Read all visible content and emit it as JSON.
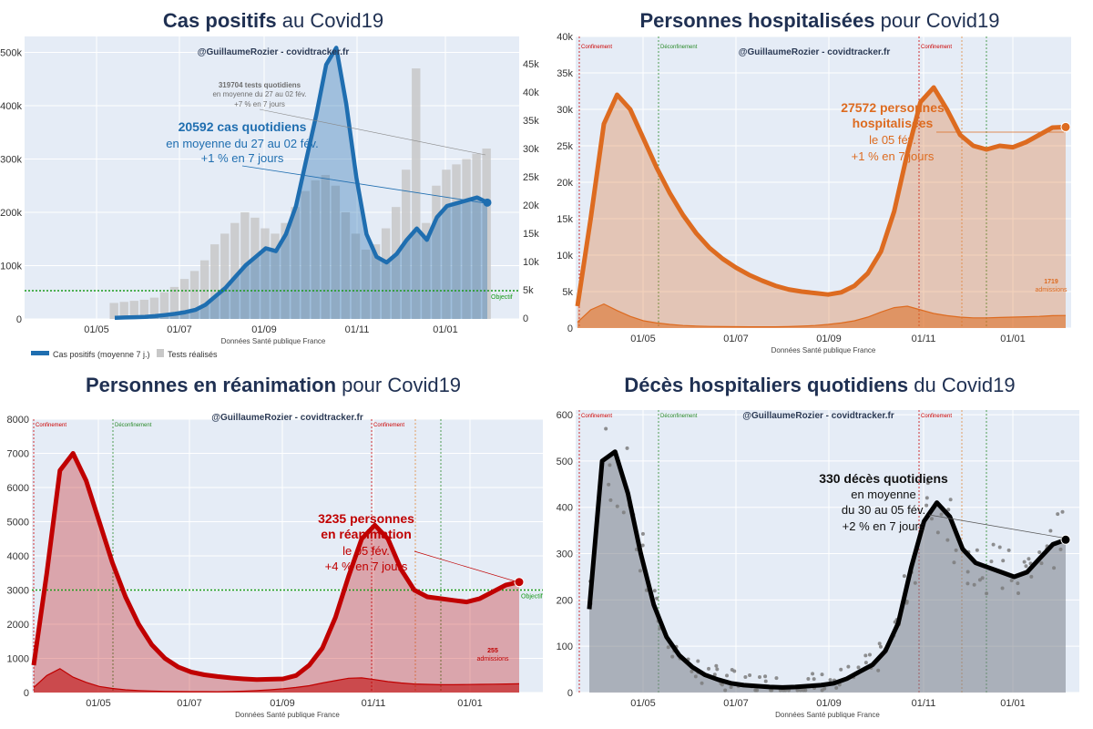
{
  "chart_data": [
    {
      "type": "area",
      "title_bold": "Cas positifs",
      "title_rest": "au Covid19",
      "credit": "@GuillaumeRozier - covidtracker.fr",
      "source": "Données Santé publique France",
      "xticks": [
        "01/05",
        "01/07",
        "01/09",
        "01/11",
        "01/01"
      ],
      "y_left_ticks": [
        "0",
        "100k",
        "200k",
        "300k",
        "400k",
        "500k"
      ],
      "y_left_range": [
        0,
        530000
      ],
      "y_right_ticks": [
        "0",
        "5k",
        "10k",
        "15k",
        "20k",
        "25k",
        "30k",
        "35k",
        "40k",
        "45k"
      ],
      "y_right_range": [
        0,
        50000
      ],
      "legend": [
        "Cas positifs (moyenne 7 j.)",
        "Tests réalisés"
      ],
      "objective": {
        "label": "Objectif",
        "value": 5000
      },
      "series": [
        {
          "name": "Cas positifs (moyenne 7 j.)",
          "axis": "right",
          "color": "#1f6eb0",
          "x": [
            0,
            1,
            2,
            3,
            4,
            5,
            6,
            7,
            8,
            9,
            10,
            11,
            12,
            13,
            14,
            15,
            16,
            17,
            18,
            19,
            20,
            21,
            22,
            23,
            24,
            25,
            26,
            27,
            28,
            29,
            30,
            31,
            32,
            33,
            34,
            35,
            36,
            37
          ],
          "values": [
            200,
            250,
            300,
            350,
            500,
            700,
            900,
            1200,
            1600,
            2500,
            4000,
            5500,
            7500,
            9500,
            11000,
            12500,
            12000,
            15000,
            20000,
            28000,
            36000,
            45000,
            48000,
            38000,
            25000,
            15000,
            11000,
            10000,
            11500,
            14000,
            16000,
            14000,
            18000,
            20000,
            20500,
            21000,
            21500,
            20592
          ]
        },
        {
          "name": "Tests réalisés",
          "axis": "left",
          "color": "#c8c8c8",
          "x": [
            0,
            1,
            2,
            3,
            4,
            5,
            6,
            7,
            8,
            9,
            10,
            11,
            12,
            13,
            14,
            15,
            16,
            17,
            18,
            19,
            20,
            21,
            22,
            23,
            24,
            25,
            26,
            27,
            28,
            29,
            30,
            31,
            32,
            33,
            34,
            35,
            36,
            37
          ],
          "values": [
            30000,
            32000,
            34000,
            36000,
            40000,
            50000,
            60000,
            75000,
            90000,
            110000,
            140000,
            160000,
            180000,
            200000,
            190000,
            170000,
            160000,
            180000,
            210000,
            240000,
            260000,
            270000,
            250000,
            200000,
            160000,
            130000,
            140000,
            170000,
            210000,
            280000,
            470000,
            180000,
            250000,
            280000,
            290000,
            300000,
            310000,
            319704
          ]
        }
      ],
      "annotations": [
        {
          "text": "319704 tests quotidiens",
          "bold": true,
          "color": "#6e6e6e"
        },
        {
          "text": "en moyenne du 27 au 02 fév.",
          "bold": false,
          "color": "#6e6e6e"
        },
        {
          "text": "+7 % en 7 jours",
          "bold": false,
          "color": "#6e6e6e"
        },
        {
          "text": "20592 cas quotidiens",
          "bold": true,
          "color": "#1f6eb0"
        },
        {
          "text": "en moyenne du 27 au 02 fév.",
          "bold": false,
          "color": "#1f6eb0"
        },
        {
          "text": "+1 % en 7 jours",
          "bold": false,
          "color": "#1f6eb0"
        }
      ]
    },
    {
      "type": "area",
      "title_bold": "Personnes hospitalisées",
      "title_rest": "pour Covid19",
      "credit": "@GuillaumeRozier - covidtracker.fr",
      "source": "Données Santé publique France",
      "xticks": [
        "01/05",
        "01/07",
        "01/09",
        "01/11",
        "01/01"
      ],
      "y_left_ticks": [
        "0",
        "5k",
        "10k",
        "15k",
        "20k",
        "25k",
        "30k",
        "35k",
        "40k"
      ],
      "y_left_range": [
        0,
        40000
      ],
      "events": [
        {
          "label": "Confinement",
          "color": "#cc0000"
        },
        {
          "label": "Déconfinement",
          "color": "#2a8a2a"
        },
        {
          "label": "Confinement",
          "color": "#cc0000"
        }
      ],
      "series": [
        {
          "name": "Personnes hospitalisées",
          "color": "#dd6b20",
          "x": [
            0,
            1,
            2,
            3,
            4,
            5,
            6,
            7,
            8,
            9,
            10,
            11,
            12,
            13,
            14,
            15,
            16,
            17,
            18,
            19,
            20,
            21,
            22,
            23,
            24,
            25,
            26,
            27,
            28,
            29,
            30,
            31,
            32,
            33,
            34,
            35,
            36,
            37
          ],
          "values": [
            3000,
            15000,
            28000,
            32000,
            30000,
            26000,
            22000,
            18500,
            15500,
            13000,
            11000,
            9500,
            8300,
            7300,
            6500,
            5800,
            5300,
            5000,
            4800,
            4600,
            4900,
            5800,
            7500,
            10500,
            16000,
            24000,
            31000,
            33000,
            30000,
            26500,
            25000,
            24500,
            25000,
            24800,
            25500,
            26500,
            27500,
            27572
          ]
        },
        {
          "name": "admissions",
          "color": "#dd6b20",
          "x": [
            0,
            1,
            2,
            3,
            4,
            5,
            6,
            7,
            8,
            9,
            10,
            11,
            12,
            13,
            14,
            15,
            16,
            17,
            18,
            19,
            20,
            21,
            22,
            23,
            24,
            25,
            26,
            27,
            28,
            29,
            30,
            31,
            32,
            33,
            34,
            35,
            36,
            37
          ],
          "values": [
            800,
            2500,
            3300,
            2400,
            1600,
            1000,
            700,
            500,
            350,
            280,
            230,
            200,
            190,
            180,
            170,
            180,
            200,
            260,
            350,
            500,
            700,
            1000,
            1500,
            2200,
            2800,
            3000,
            2500,
            2000,
            1700,
            1500,
            1400,
            1400,
            1450,
            1500,
            1550,
            1600,
            1700,
            1719
          ]
        }
      ],
      "annotations": [
        {
          "text": "27572 personnes",
          "bold": true,
          "color": "#dd6b20"
        },
        {
          "text": "hospitalisées",
          "bold": true,
          "color": "#dd6b20"
        },
        {
          "text": "le 05 fév.",
          "bold": false,
          "color": "#dd6b20"
        },
        {
          "text": "+1 % en 7 jours",
          "bold": false,
          "color": "#dd6b20"
        },
        {
          "text": "1719",
          "bold": true,
          "color": "#dd6b20"
        },
        {
          "text": "admissions",
          "bold": false,
          "color": "#dd6b20"
        }
      ]
    },
    {
      "type": "area",
      "title_bold": "Personnes en réanimation",
      "title_rest": "pour Covid19",
      "credit": "@GuillaumeRozier - covidtracker.fr",
      "source": "Données Santé publique France",
      "xticks": [
        "01/05",
        "01/07",
        "01/09",
        "01/11",
        "01/01"
      ],
      "y_left_ticks": [
        "0",
        "1000",
        "2000",
        "3000",
        "4000",
        "5000",
        "6000",
        "7000",
        "8000"
      ],
      "y_left_range": [
        0,
        8000
      ],
      "objective": {
        "label": "Objectif",
        "value": 3000
      },
      "events": [
        {
          "label": "Confinement",
          "color": "#cc0000"
        },
        {
          "label": "Déconfinement",
          "color": "#2a8a2a"
        },
        {
          "label": "Confinement",
          "color": "#cc0000"
        }
      ],
      "series": [
        {
          "name": "Personnes en réanimation",
          "color": "#c00000",
          "x": [
            0,
            1,
            2,
            3,
            4,
            5,
            6,
            7,
            8,
            9,
            10,
            11,
            12,
            13,
            14,
            15,
            16,
            17,
            18,
            19,
            20,
            21,
            22,
            23,
            24,
            25,
            26,
            27,
            28,
            29,
            30,
            31,
            32,
            33,
            34,
            35,
            36,
            37
          ],
          "values": [
            800,
            3500,
            6500,
            7000,
            6200,
            5000,
            3800,
            2800,
            2000,
            1400,
            1000,
            750,
            600,
            520,
            470,
            430,
            400,
            380,
            390,
            400,
            500,
            800,
            1300,
            2200,
            3400,
            4500,
            4900,
            4500,
            3600,
            3000,
            2800,
            2750,
            2700,
            2650,
            2750,
            2950,
            3150,
            3235
          ]
        },
        {
          "name": "admissions",
          "color": "#c00000",
          "x": [
            0,
            1,
            2,
            3,
            4,
            5,
            6,
            7,
            8,
            9,
            10,
            11,
            12,
            13,
            14,
            15,
            16,
            17,
            18,
            19,
            20,
            21,
            22,
            23,
            24,
            25,
            26,
            27,
            28,
            29,
            30,
            31,
            32,
            33,
            34,
            35,
            36,
            37
          ],
          "values": [
            150,
            500,
            700,
            450,
            300,
            180,
            120,
            80,
            60,
            45,
            35,
            30,
            28,
            26,
            25,
            30,
            40,
            55,
            80,
            110,
            150,
            200,
            280,
            350,
            420,
            430,
            380,
            320,
            280,
            250,
            240,
            230,
            230,
            235,
            240,
            245,
            250,
            255
          ]
        }
      ],
      "annotations": [
        {
          "text": "3235 personnes",
          "bold": true,
          "color": "#c00000"
        },
        {
          "text": "en réanimation",
          "bold": true,
          "color": "#c00000"
        },
        {
          "text": "le 05 fév.",
          "bold": false,
          "color": "#c00000"
        },
        {
          "text": "+4 % en 7 jours",
          "bold": false,
          "color": "#c00000"
        },
        {
          "text": "255",
          "bold": true,
          "color": "#c00000"
        },
        {
          "text": "admissions",
          "bold": false,
          "color": "#c00000"
        }
      ]
    },
    {
      "type": "area",
      "title_bold": "Décès hospitaliers quotidiens",
      "title_rest": "du Covid19",
      "credit": "@GuillaumeRozier - covidtracker.fr",
      "source": "Données Santé publique France",
      "xticks": [
        "01/05",
        "01/07",
        "01/09",
        "01/11",
        "01/01"
      ],
      "y_left_ticks": [
        "0",
        "100",
        "200",
        "300",
        "400",
        "500",
        "600"
      ],
      "y_left_range": [
        0,
        610
      ],
      "events": [
        {
          "label": "Confinement",
          "color": "#cc0000"
        },
        {
          "label": "Déconfinement",
          "color": "#2a8a2a"
        },
        {
          "label": "Confinement",
          "color": "#cc0000"
        }
      ],
      "series": [
        {
          "name": "Décès hospitaliers quotidiens",
          "color": "#000000",
          "x": [
            0,
            1,
            2,
            3,
            4,
            5,
            6,
            7,
            8,
            9,
            10,
            11,
            12,
            13,
            14,
            15,
            16,
            17,
            18,
            19,
            20,
            21,
            22,
            23,
            24,
            25,
            26,
            27,
            28,
            29,
            30,
            31,
            32,
            33,
            34,
            35,
            36,
            37
          ],
          "values": [
            180,
            500,
            520,
            430,
            300,
            190,
            120,
            80,
            55,
            38,
            28,
            20,
            16,
            14,
            12,
            11,
            12,
            14,
            16,
            20,
            30,
            45,
            60,
            90,
            150,
            270,
            370,
            410,
            380,
            310,
            280,
            270,
            260,
            250,
            260,
            290,
            320,
            330
          ]
        }
      ],
      "annotations": [
        {
          "text": "330 décès quotidiens",
          "bold": true,
          "color": "#111111"
        },
        {
          "text": "en moyenne",
          "bold": false,
          "color": "#111111"
        },
        {
          "text": "du 30 au 05 fév.",
          "bold": false,
          "color": "#111111"
        },
        {
          "text": "+2 % en 7 jours",
          "bold": false,
          "color": "#111111"
        }
      ]
    }
  ]
}
